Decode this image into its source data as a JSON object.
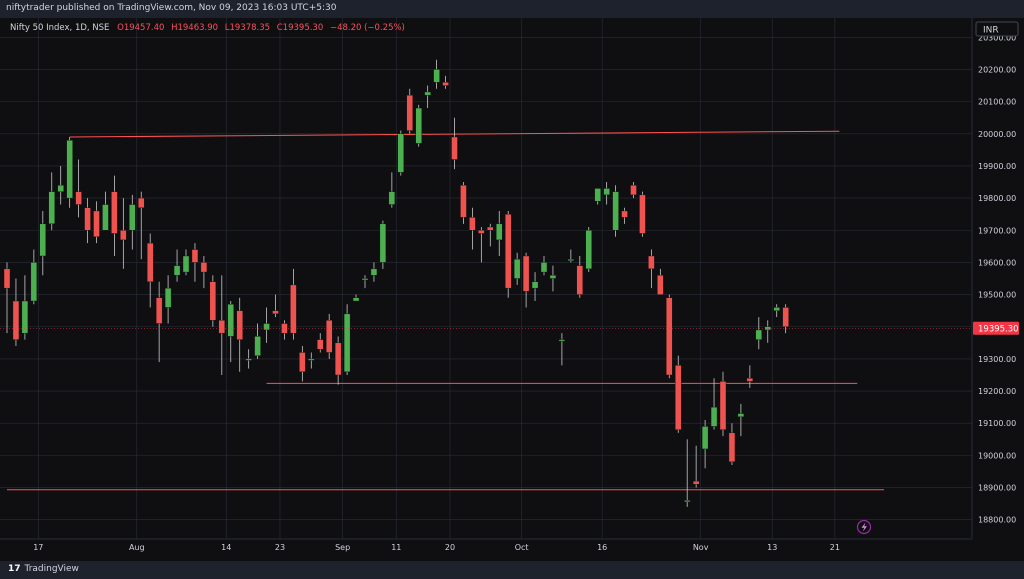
{
  "header": {
    "published": "niftytrader published on TradingView.com, Nov 09, 2023 16:03 UTC+5:30"
  },
  "footer": {
    "brand": "TradingView",
    "logo_mark": "17"
  },
  "chart_data": {
    "type": "candlestick",
    "title": "Nifty 50 Index, 1D, NSE",
    "ohlc_label": {
      "o": "O19457.40",
      "h": "H19463.90",
      "l": "L19378.35",
      "c": "C19395.30",
      "chg": "−48.20 (−0.25%)"
    },
    "currency": "INR",
    "last_price": 19395.3,
    "last_price_label": "19395.30",
    "ylim": [
      18740,
      20360
    ],
    "y_ticks": [
      18800,
      18900,
      19000,
      19100,
      19200,
      19300,
      19400,
      19500,
      19600,
      19700,
      19800,
      19900,
      20000,
      20100,
      20200,
      20300
    ],
    "y_tick_labels": [
      "18800.00",
      "18900.00",
      "19000.00",
      "19100.00",
      "19200.00",
      "19300.00",
      "19400.00",
      "19500.00",
      "19600.00",
      "19700.00",
      "19800.00",
      "19900.00",
      "20000.00",
      "20100.00",
      "20200.00",
      "20300.00"
    ],
    "x_ticks": [
      {
        "index": 3.5,
        "label": "17"
      },
      {
        "index": 14.5,
        "label": "Aug"
      },
      {
        "index": 24.5,
        "label": "14"
      },
      {
        "index": 30.5,
        "label": "23"
      },
      {
        "index": 37.5,
        "label": "Sep"
      },
      {
        "index": 43.5,
        "label": "11"
      },
      {
        "index": 49.5,
        "label": "20"
      },
      {
        "index": 57.5,
        "label": "Oct"
      },
      {
        "index": 66.5,
        "label": "16"
      },
      {
        "index": 77.5,
        "label": "Nov"
      },
      {
        "index": 85.5,
        "label": "13"
      },
      {
        "index": 92.5,
        "label": "21"
      }
    ],
    "x_range": [
      0,
      94
    ],
    "candles": [
      [
        19580,
        19520,
        19600,
        19380
      ],
      [
        19480,
        19360,
        19550,
        19340
      ],
      [
        19380,
        19480,
        19560,
        19360
      ],
      [
        19480,
        19600,
        19640,
        19470
      ],
      [
        19620,
        19720,
        19760,
        19560
      ],
      [
        19720,
        19820,
        19880,
        19700
      ],
      [
        19820,
        19840,
        19900,
        19780
      ],
      [
        19800,
        19980,
        19990,
        19770
      ],
      [
        19820,
        19780,
        19920,
        19740
      ],
      [
        19770,
        19700,
        19800,
        19660
      ],
      [
        19760,
        19680,
        19790,
        19660
      ],
      [
        19700,
        19780,
        19820,
        19700
      ],
      [
        19820,
        19690,
        19870,
        19620
      ],
      [
        19700,
        19670,
        19800,
        19580
      ],
      [
        19700,
        19780,
        19810,
        19640
      ],
      [
        19800,
        19770,
        19820,
        19610
      ],
      [
        19660,
        19540,
        19690,
        19460
      ],
      [
        19490,
        19410,
        19540,
        19290
      ],
      [
        19460,
        19520,
        19560,
        19410
      ],
      [
        19560,
        19590,
        19640,
        19540
      ],
      [
        19570,
        19620,
        19640,
        19560
      ],
      [
        19640,
        19600,
        19660,
        19540
      ],
      [
        19600,
        19570,
        19620,
        19520
      ],
      [
        19540,
        19420,
        19560,
        19400
      ],
      [
        19420,
        19380,
        19560,
        19250
      ],
      [
        19370,
        19470,
        19480,
        19290
      ],
      [
        19450,
        19360,
        19490,
        19260
      ],
      [
        19300,
        19300,
        19330,
        19270
      ],
      [
        19310,
        19370,
        19410,
        19300
      ],
      [
        19390,
        19410,
        19460,
        19350
      ],
      [
        19450,
        19440,
        19500,
        19430
      ],
      [
        19410,
        19380,
        19420,
        19360
      ],
      [
        19530,
        19380,
        19580,
        19360
      ],
      [
        19320,
        19260,
        19340,
        19230
      ],
      [
        19300,
        19300,
        19320,
        19270
      ],
      [
        19360,
        19330,
        19380,
        19320
      ],
      [
        19420,
        19320,
        19440,
        19300
      ],
      [
        19350,
        19250,
        19370,
        19220
      ],
      [
        19260,
        19440,
        19470,
        19250
      ],
      [
        19480,
        19490,
        19500,
        19480
      ],
      [
        19550,
        19550,
        19560,
        19520
      ],
      [
        19560,
        19580,
        19600,
        19540
      ],
      [
        19600,
        19720,
        19730,
        19580
      ],
      [
        19780,
        19820,
        19880,
        19770
      ],
      [
        19880,
        20000,
        20010,
        19870
      ],
      [
        20120,
        20010,
        20140,
        20000
      ],
      [
        19970,
        20080,
        20090,
        19960
      ],
      [
        20120,
        20130,
        20150,
        20080
      ],
      [
        20160,
        20200,
        20230,
        20140
      ],
      [
        20160,
        20150,
        20180,
        20140
      ],
      [
        19990,
        19920,
        20050,
        19890
      ],
      [
        19840,
        19740,
        19850,
        19720
      ],
      [
        19740,
        19700,
        19770,
        19640
      ],
      [
        19700,
        19690,
        19710,
        19600
      ],
      [
        19710,
        19700,
        19720,
        19650
      ],
      [
        19670,
        19720,
        19760,
        19620
      ],
      [
        19750,
        19520,
        19760,
        19490
      ],
      [
        19550,
        19610,
        19630,
        19530
      ],
      [
        19620,
        19510,
        19630,
        19460
      ],
      [
        19520,
        19540,
        19570,
        19480
      ],
      [
        19570,
        19600,
        19620,
        19560
      ],
      [
        19550,
        19560,
        19590,
        19510
      ],
      [
        19360,
        19360,
        19380,
        19280
      ],
      [
        19610,
        19610,
        19640,
        19600
      ],
      [
        19590,
        19500,
        19620,
        19490
      ],
      [
        19580,
        19700,
        19710,
        19570
      ],
      [
        19790,
        19830,
        19830,
        19780
      ],
      [
        19810,
        19830,
        19850,
        19780
      ],
      [
        19700,
        19820,
        19840,
        19680
      ],
      [
        19760,
        19740,
        19770,
        19720
      ],
      [
        19840,
        19810,
        19850,
        19800
      ],
      [
        19810,
        19690,
        19820,
        19680
      ],
      [
        19620,
        19580,
        19640,
        19520
      ],
      [
        19560,
        19500,
        19580,
        19510
      ],
      [
        19490,
        19250,
        19500,
        19240
      ],
      [
        19280,
        19080,
        19310,
        19070
      ],
      [
        18860,
        18860,
        19050,
        18840
      ],
      [
        18920,
        18910,
        19030,
        18900
      ],
      [
        19020,
        19090,
        19110,
        18960
      ],
      [
        19090,
        19150,
        19240,
        19080
      ],
      [
        19230,
        19080,
        19260,
        19060
      ],
      [
        19070,
        18980,
        19100,
        18970
      ],
      [
        19120,
        19130,
        19160,
        19060
      ],
      [
        19240,
        19230,
        19280,
        19210
      ],
      [
        19360,
        19390,
        19430,
        19330
      ],
      [
        19390,
        19400,
        19420,
        19350
      ],
      [
        19450,
        19460,
        19470,
        19430
      ],
      [
        19460,
        19400,
        19470,
        19380
      ]
    ],
    "levels": [
      {
        "from": 7,
        "to": 93,
        "y1": 19990,
        "y2": 20008,
        "color": "#ff5252"
      },
      {
        "from": 29,
        "to": 95,
        "y1": 19224,
        "y2": 19224,
        "color": "#ff5252"
      },
      {
        "from": 0,
        "to": 98,
        "y1": 18893,
        "y2": 18893,
        "color": "#ff5252"
      }
    ],
    "colors": {
      "up": "#26a69a",
      "up_fill": "#4caf50",
      "down": "#ef5350",
      "grid": "#2a2e39",
      "axis_text": "#d1d4dc",
      "last_label_bg": "#f23645"
    },
    "icon": "lightning-icon"
  }
}
